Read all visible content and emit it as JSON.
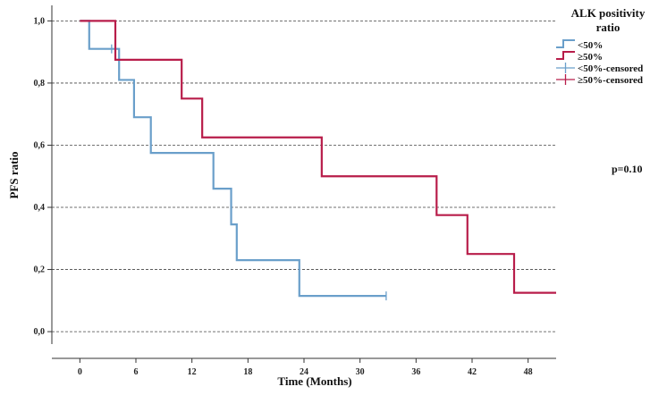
{
  "chart_data": {
    "type": "line",
    "subtype": "kaplan-meier-step",
    "xlabel": "Time (Months)",
    "ylabel": "PFS ratio",
    "xlim": [
      -3,
      51
    ],
    "ylim": [
      -0.04,
      1.05
    ],
    "xticks": [
      0,
      6,
      12,
      18,
      24,
      30,
      36,
      42,
      48
    ],
    "yticks": [
      0.0,
      0.2,
      0.4,
      0.6,
      0.8,
      1.0
    ],
    "ytick_labels": [
      "0,0",
      "0,2",
      "0,4",
      "0,6",
      "0,8",
      "1,0"
    ],
    "grid": "horizontal dashed",
    "legend": {
      "title": "ALK positivity ratio",
      "title_lines": [
        "ALK positivity",
        "ratio"
      ],
      "placement": "top-right",
      "entries": [
        {
          "label": "<50%",
          "kind": "line",
          "color": "#6a9fca"
        },
        {
          "label": "≥50%",
          "kind": "line",
          "color": "#b81d4a"
        },
        {
          "label": "<50%-censored",
          "kind": "censor",
          "color": "#6a9fca"
        },
        {
          "label": "≥50%-censored",
          "kind": "censor",
          "color": "#b81d4a"
        }
      ]
    },
    "annotations": [
      {
        "text": "p=0.10",
        "placement": "right-middle"
      }
    ],
    "series": [
      {
        "name": "<50%",
        "color": "#6a9fca",
        "steps": [
          [
            0,
            1.0
          ],
          [
            1.0,
            0.91
          ],
          [
            4.2,
            0.81
          ],
          [
            5.8,
            0.69
          ],
          [
            7.6,
            0.575
          ],
          [
            14.3,
            0.46
          ],
          [
            16.2,
            0.345
          ],
          [
            16.8,
            0.23
          ],
          [
            23.5,
            0.115
          ],
          [
            32.8,
            0.115
          ]
        ],
        "censored": [
          [
            3.4,
            0.91
          ],
          [
            32.8,
            0.115
          ]
        ]
      },
      {
        "name": "≥50%",
        "color": "#b81d4a",
        "steps": [
          [
            0,
            1.0
          ],
          [
            3.8,
            0.875
          ],
          [
            10.9,
            0.75
          ],
          [
            13.1,
            0.625
          ],
          [
            25.9,
            0.5
          ],
          [
            38.2,
            0.375
          ],
          [
            41.5,
            0.25
          ],
          [
            46.5,
            0.125
          ],
          [
            51,
            0.125
          ]
        ],
        "censored": []
      }
    ]
  }
}
